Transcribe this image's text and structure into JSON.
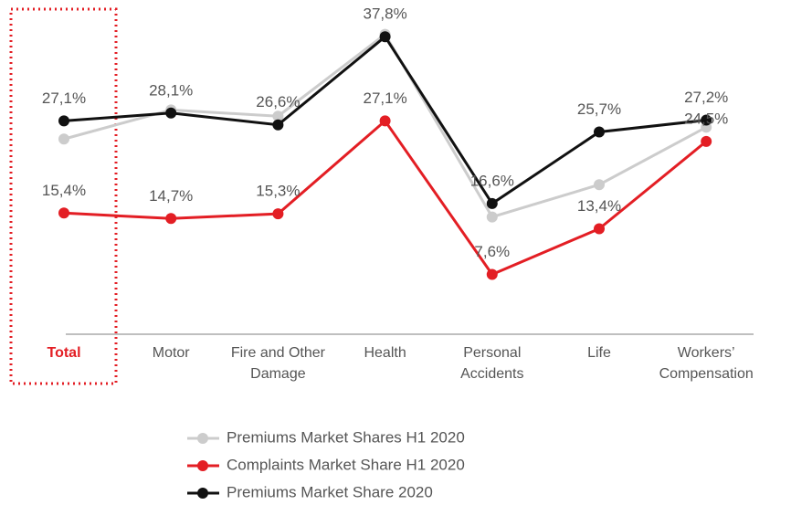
{
  "chart_data": {
    "type": "line",
    "categories": [
      "Total",
      "Motor",
      "Fire and Other Damage",
      "Health",
      "Personal Accidents",
      "Life",
      "Workers’ Compensation"
    ],
    "ylim": [
      0,
      42
    ],
    "series": [
      {
        "name": "Premiums Market Shares H1 2020",
        "color": "#cccccc",
        "values": [
          24.8,
          28.5,
          27.7,
          38.1,
          14.9,
          19.0,
          26.3
        ]
      },
      {
        "name": "Complaints Market Share H1 2020",
        "color": "#e31e24",
        "values": [
          15.4,
          14.7,
          15.3,
          27.1,
          7.6,
          13.4,
          24.5
        ],
        "value_labels": [
          "15,4%",
          "14,7%",
          "15,3%",
          "27,1%",
          "7,6%",
          "13,4%",
          "24,5%"
        ]
      },
      {
        "name": "Premiums Market Share 2020",
        "color": "#111111",
        "values": [
          27.1,
          28.1,
          26.6,
          37.8,
          16.6,
          25.7,
          27.2
        ],
        "value_labels": [
          "27,1%",
          "28,1%",
          "26,6%",
          "37,8%",
          "16,6%",
          "25,7%",
          "27,2%"
        ]
      }
    ]
  }
}
